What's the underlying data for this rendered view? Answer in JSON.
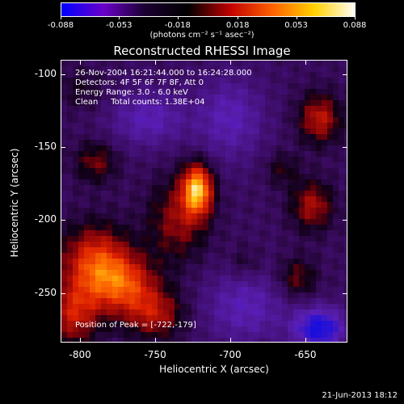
{
  "colorbar": {
    "tick_labels": [
      "-0.088",
      "-0.053",
      "-0.018",
      "0.018",
      "0.053",
      "0.088"
    ],
    "units": "(photons cm⁻² s⁻¹ asec⁻²)",
    "range": [
      -0.088,
      0.088
    ],
    "colors": [
      "#0000ff",
      "#6a00c8",
      "#1a0030",
      "#000000",
      "#c00000",
      "#ff6000",
      "#ffd000",
      "#ffffff"
    ]
  },
  "title": "Reconstructed RHESSI Image",
  "info": {
    "line1": "26-Nov-2004 16:21:44.000 to 16:24:28.000",
    "line2": "Detectors: 4F 5F 6F 7F 8F, Att 0",
    "line3": "Energy Range: 3.0 - 6.0 keV",
    "line4": "Clean     Total counts: 1.38E+04"
  },
  "peak_label": "Position of Peak = [-722,-179]",
  "x_axis": {
    "title": "Heliocentric X (arcsec)",
    "tick_labels": [
      "-800",
      "-750",
      "-700",
      "-650"
    ],
    "range": [
      -813,
      -622
    ]
  },
  "y_axis": {
    "title": "Heliocentric Y (arcsec)",
    "tick_labels": [
      "-100",
      "-150",
      "-200",
      "-250"
    ],
    "range": [
      -284,
      -90
    ]
  },
  "footer": "21-Jun-2013 18:12",
  "image_features": [
    {
      "x": -722,
      "y": -179,
      "amp": 0.088,
      "sx": 7,
      "sy": 12
    },
    {
      "x": -735,
      "y": -200,
      "amp": 0.035,
      "sx": 14,
      "sy": 20
    },
    {
      "x": -790,
      "y": -230,
      "amp": 0.06,
      "sx": 16,
      "sy": 18
    },
    {
      "x": -770,
      "y": -245,
      "amp": 0.05,
      "sx": 15,
      "sy": 14
    },
    {
      "x": -805,
      "y": -265,
      "amp": 0.045,
      "sx": 12,
      "sy": 15
    },
    {
      "x": -750,
      "y": -265,
      "amp": 0.04,
      "sx": 14,
      "sy": 12
    },
    {
      "x": -790,
      "y": -160,
      "amp": 0.03,
      "sx": 10,
      "sy": 10
    },
    {
      "x": -800,
      "y": -110,
      "amp": 0.015,
      "sx": 12,
      "sy": 10
    },
    {
      "x": -640,
      "y": -130,
      "amp": 0.045,
      "sx": 10,
      "sy": 12
    },
    {
      "x": -645,
      "y": -190,
      "amp": 0.04,
      "sx": 10,
      "sy": 12
    },
    {
      "x": -655,
      "y": -240,
      "amp": 0.03,
      "sx": 9,
      "sy": 10
    },
    {
      "x": -665,
      "y": -165,
      "amp": 0.02,
      "sx": 8,
      "sy": 8
    },
    {
      "x": -690,
      "y": -230,
      "amp": 0.015,
      "sx": 8,
      "sy": 8
    },
    {
      "x": -755,
      "y": -130,
      "amp": -0.03,
      "sx": 18,
      "sy": 14
    },
    {
      "x": -700,
      "y": -130,
      "amp": -0.03,
      "sx": 16,
      "sy": 20
    },
    {
      "x": -640,
      "y": -275,
      "amp": -0.06,
      "sx": 12,
      "sy": 10
    },
    {
      "x": -690,
      "y": -260,
      "amp": -0.03,
      "sx": 20,
      "sy": 18
    }
  ]
}
